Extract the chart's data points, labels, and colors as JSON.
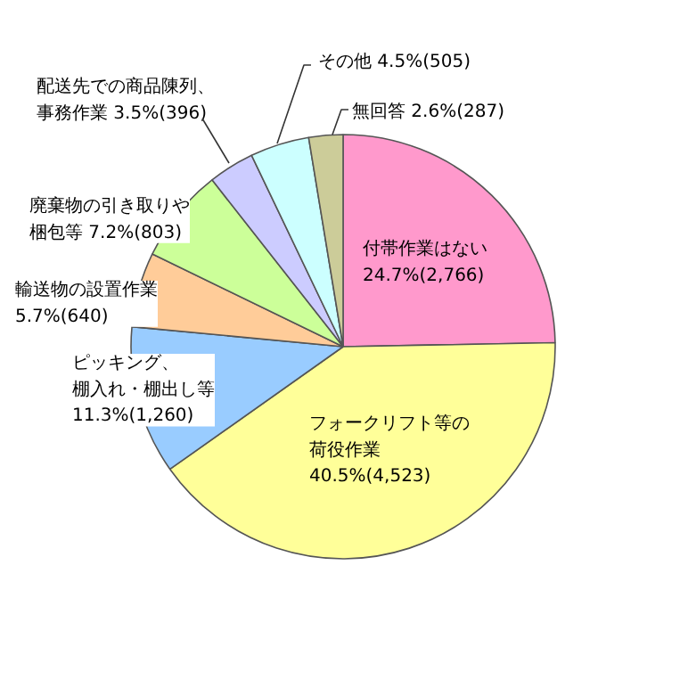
{
  "chart_data": {
    "type": "pie",
    "categories": [
      "付帯作業はない",
      "フォークリフト等の荷役作業",
      "ピッキング、棚入れ・棚出し等",
      "輸送物の設置作業",
      "廃棄物の引き取りや梱包等",
      "配送先での商品陳列、事務作業",
      "その他",
      "無回答"
    ],
    "values": [
      24.7,
      40.5,
      11.3,
      5.7,
      7.2,
      3.5,
      4.5,
      2.6
    ],
    "value_labels": [
      "24.7%(2,766)",
      "40.5%(4,523)",
      "11.3%(1,260)",
      "5.7%(640)",
      "7.2%(803)",
      "3.5%(396)",
      "4.5%(505)",
      "2.6%(287)"
    ],
    "colors": [
      "#ff99cc",
      "#ffff99",
      "#99ccff",
      "#ffcc99",
      "#ccff99",
      "#ccccff",
      "#ccffff",
      "#cccc99"
    ]
  }
}
